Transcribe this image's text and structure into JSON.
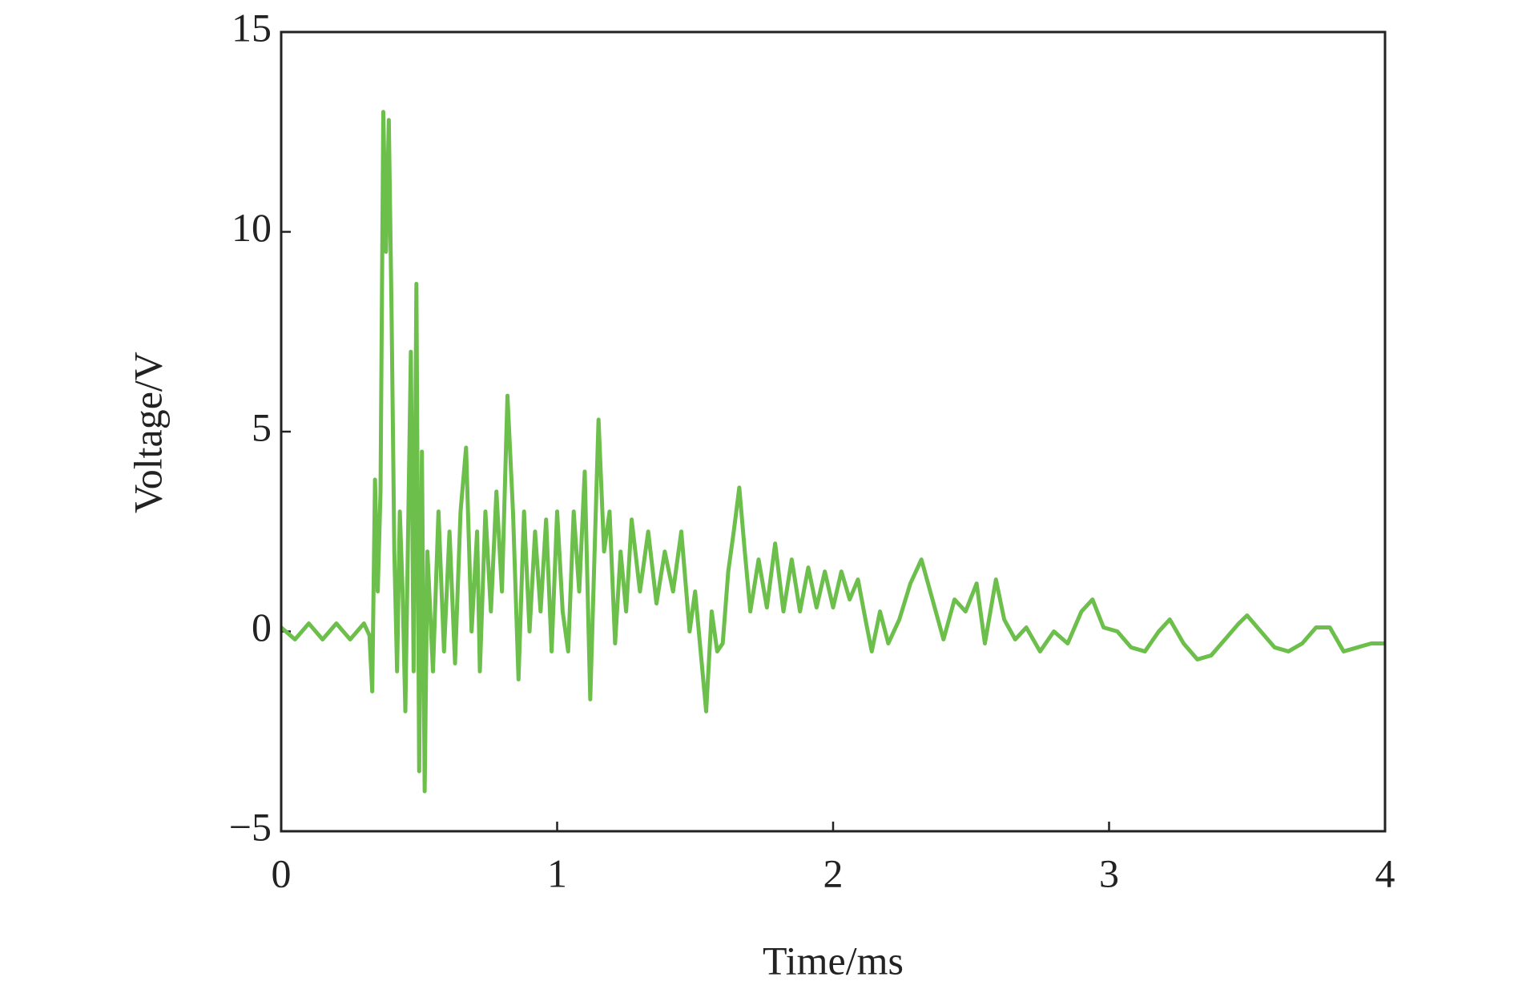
{
  "chart_data": {
    "type": "line",
    "x_label": "Time/ms",
    "y_label": "Voltage/V",
    "xlim": [
      0,
      4
    ],
    "xticks": [
      0,
      1,
      2,
      3,
      4
    ],
    "ylim": [
      -5,
      15
    ],
    "yticks": [
      {
        "value": -5,
        "label": "−5"
      },
      0,
      5,
      10,
      15
    ],
    "grid": false,
    "series": [
      {
        "color": "#6cbf4a",
        "x": [
          0,
          0.05,
          0.1,
          0.15,
          0.2,
          0.25,
          0.3,
          0.32,
          0.33,
          0.34,
          0.35,
          0.36,
          0.37,
          0.38,
          0.39,
          0.4,
          0.41,
          0.42,
          0.43,
          0.44,
          0.45,
          0.46,
          0.47,
          0.48,
          0.49,
          0.5,
          0.51,
          0.52,
          0.53,
          0.55,
          0.57,
          0.59,
          0.61,
          0.63,
          0.65,
          0.67,
          0.69,
          0.71,
          0.72,
          0.74,
          0.76,
          0.78,
          0.8,
          0.82,
          0.84,
          0.86,
          0.88,
          0.9,
          0.92,
          0.94,
          0.96,
          0.98,
          1.0,
          1.02,
          1.04,
          1.06,
          1.08,
          1.1,
          1.12,
          1.14,
          1.15,
          1.17,
          1.19,
          1.21,
          1.23,
          1.25,
          1.27,
          1.3,
          1.33,
          1.36,
          1.39,
          1.42,
          1.45,
          1.48,
          1.5,
          1.52,
          1.54,
          1.56,
          1.58,
          1.6,
          1.62,
          1.64,
          1.66,
          1.68,
          1.7,
          1.73,
          1.76,
          1.79,
          1.82,
          1.85,
          1.88,
          1.91,
          1.94,
          1.97,
          2.0,
          2.03,
          2.06,
          2.09,
          2.12,
          2.14,
          2.17,
          2.2,
          2.24,
          2.28,
          2.32,
          2.36,
          2.4,
          2.44,
          2.48,
          2.52,
          2.55,
          2.59,
          2.62,
          2.66,
          2.7,
          2.75,
          2.8,
          2.85,
          2.9,
          2.94,
          2.98,
          3.03,
          3.08,
          3.13,
          3.18,
          3.22,
          3.27,
          3.32,
          3.37,
          3.42,
          3.47,
          3.5,
          3.55,
          3.6,
          3.65,
          3.7,
          3.75,
          3.8,
          3.85,
          3.9,
          3.95,
          4.0
        ],
        "values": [
          0.1,
          -0.2,
          0.2,
          -0.2,
          0.2,
          -0.2,
          0.2,
          -0.1,
          -1.5,
          3.8,
          1,
          3.5,
          13,
          9.5,
          12.8,
          8,
          2,
          -1,
          3,
          1,
          -2,
          2.5,
          7,
          -1,
          8.7,
          -3.5,
          4.5,
          -4,
          2,
          -1,
          3,
          -0.5,
          2.5,
          -0.8,
          3,
          4.6,
          0,
          2.5,
          -1,
          3,
          0.5,
          3.5,
          1,
          5.9,
          3,
          -1.2,
          3,
          0,
          2.5,
          0.5,
          2.8,
          -0.5,
          3,
          0.5,
          -0.5,
          3,
          1,
          4,
          -1.7,
          3,
          5.3,
          2,
          3,
          -0.3,
          2,
          0.5,
          2.8,
          1,
          2.5,
          0.7,
          2,
          1,
          2.5,
          0,
          1,
          -0.5,
          -2,
          0.5,
          -0.5,
          -0.3,
          1.5,
          2.5,
          3.6,
          2,
          0.5,
          1.8,
          0.6,
          2.2,
          0.5,
          1.8,
          0.5,
          1.6,
          0.6,
          1.5,
          0.6,
          1.5,
          0.8,
          1.3,
          0.2,
          -0.5,
          0.5,
          -0.3,
          0.3,
          1.2,
          1.8,
          0.8,
          -0.2,
          0.8,
          0.5,
          1.2,
          -0.3,
          1.3,
          0.3,
          -0.2,
          0.1,
          -0.5,
          0,
          -0.3,
          0.5,
          0.8,
          0.1,
          0,
          -0.4,
          -0.5,
          0,
          0.3,
          -0.3,
          -0.7,
          -0.6,
          -0.2,
          0.2,
          0.4,
          0,
          -0.4,
          -0.5,
          -0.3,
          0.1,
          0.1,
          -0.5,
          -0.4,
          -0.3,
          -0.3
        ]
      }
    ]
  }
}
